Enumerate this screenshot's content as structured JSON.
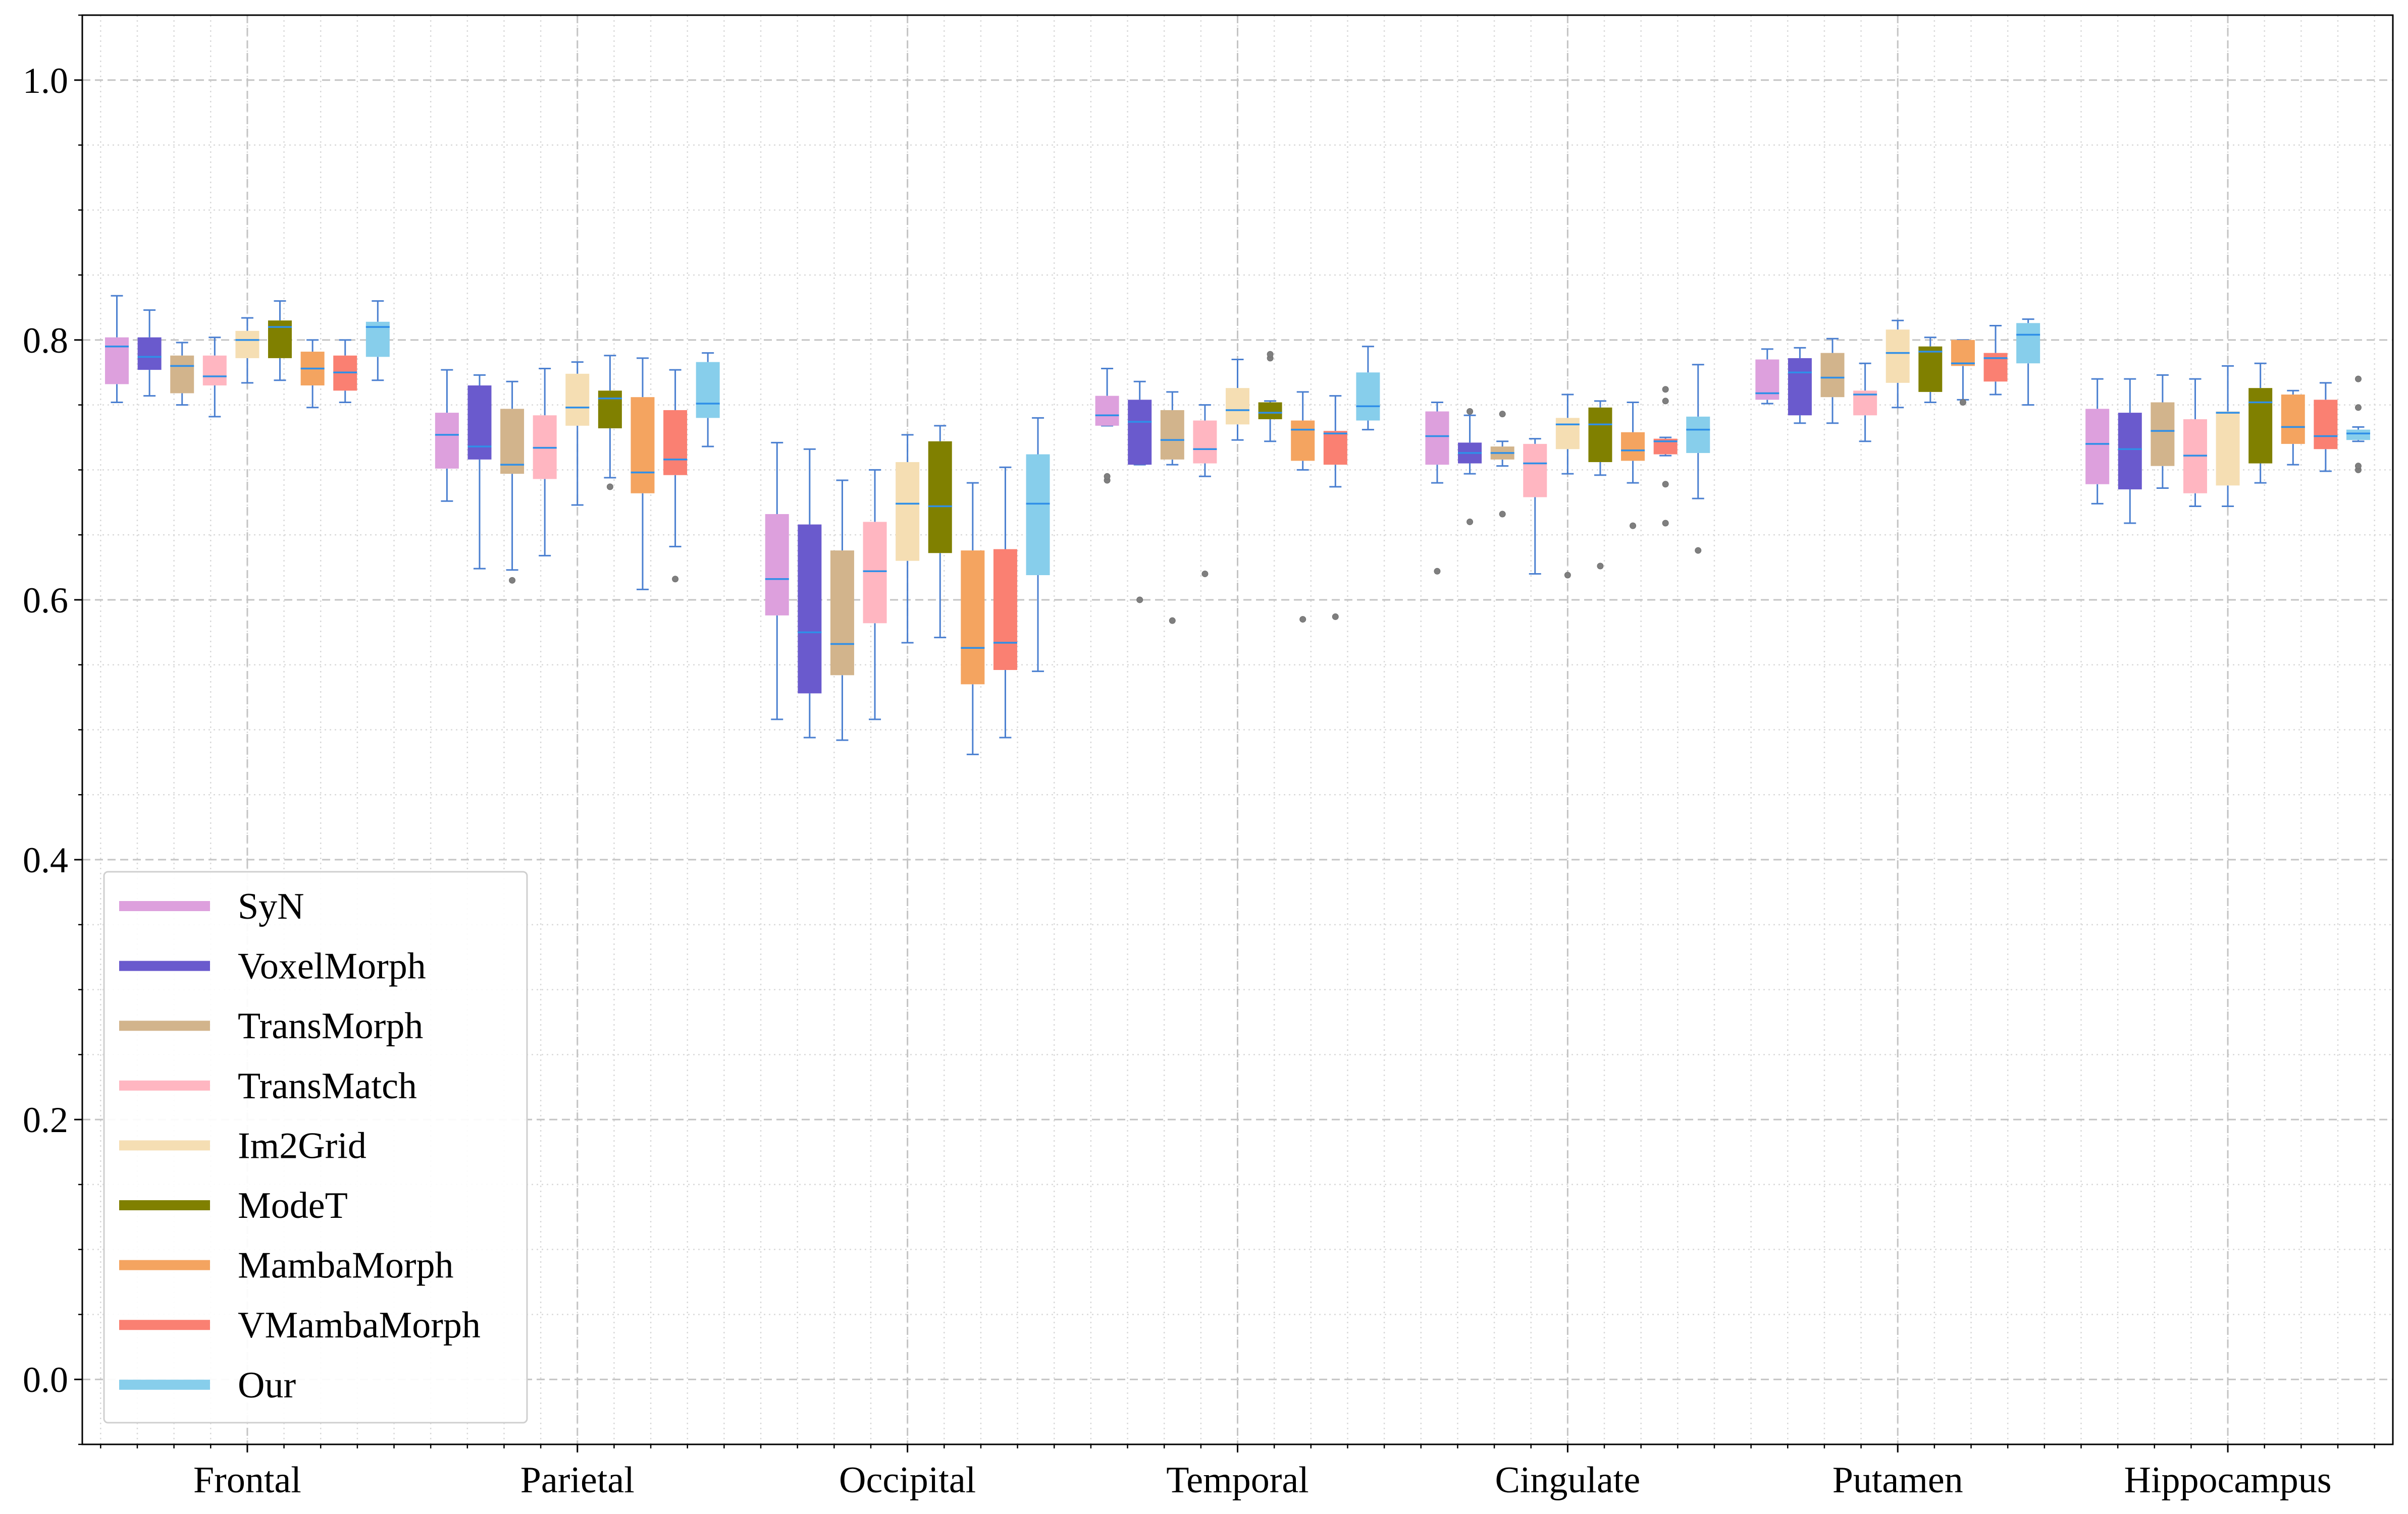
{
  "chart_data": {
    "type": "box",
    "title": "",
    "xlabel": "",
    "ylabel": "",
    "ylim": [
      -0.05,
      1.05
    ],
    "yticks": [
      "0.0",
      "0.2",
      "0.4",
      "0.6",
      "0.8",
      "1.0"
    ],
    "ytick_values": [
      0.0,
      0.2,
      0.4,
      0.6,
      0.8,
      1.0
    ],
    "grid": "major dashed, minor dotted",
    "legend_position": "lower-left",
    "categories": [
      "Frontal",
      "Parietal",
      "Occipital",
      "Temporal",
      "Cingulate",
      "Putamen",
      "Hippocampus"
    ],
    "series": [
      {
        "name": "SyN",
        "color": "#DDA0DD",
        "boxes": [
          {
            "whislo": 0.752,
            "q1": 0.766,
            "med": 0.795,
            "q3": 0.802,
            "whishi": 0.834,
            "fliers": []
          },
          {
            "whislo": 0.676,
            "q1": 0.701,
            "med": 0.727,
            "q3": 0.744,
            "whishi": 0.777,
            "fliers": []
          },
          {
            "whislo": 0.508,
            "q1": 0.588,
            "med": 0.616,
            "q3": 0.666,
            "whishi": 0.721,
            "fliers": []
          },
          {
            "whislo": 0.734,
            "q1": 0.734,
            "med": 0.742,
            "q3": 0.757,
            "whishi": 0.778,
            "fliers": [
              0.692,
              0.695
            ]
          },
          {
            "whislo": 0.69,
            "q1": 0.704,
            "med": 0.726,
            "q3": 0.745,
            "whishi": 0.752,
            "fliers": [
              0.622
            ]
          },
          {
            "whislo": 0.751,
            "q1": 0.754,
            "med": 0.759,
            "q3": 0.785,
            "whishi": 0.793,
            "fliers": []
          },
          {
            "whislo": 0.674,
            "q1": 0.689,
            "med": 0.72,
            "q3": 0.747,
            "whishi": 0.77,
            "fliers": []
          }
        ]
      },
      {
        "name": "VoxelMorph",
        "color": "#6A5ACD",
        "boxes": [
          {
            "whislo": 0.757,
            "q1": 0.777,
            "med": 0.787,
            "q3": 0.802,
            "whishi": 0.823,
            "fliers": []
          },
          {
            "whislo": 0.624,
            "q1": 0.708,
            "med": 0.718,
            "q3": 0.765,
            "whishi": 0.773,
            "fliers": []
          },
          {
            "whislo": 0.494,
            "q1": 0.528,
            "med": 0.575,
            "q3": 0.658,
            "whishi": 0.716,
            "fliers": []
          },
          {
            "whislo": 0.704,
            "q1": 0.704,
            "med": 0.737,
            "q3": 0.754,
            "whishi": 0.768,
            "fliers": [
              0.6
            ]
          },
          {
            "whislo": 0.697,
            "q1": 0.705,
            "med": 0.713,
            "q3": 0.721,
            "whishi": 0.742,
            "fliers": [
              0.66,
              0.745
            ]
          },
          {
            "whislo": 0.736,
            "q1": 0.742,
            "med": 0.775,
            "q3": 0.786,
            "whishi": 0.794,
            "fliers": []
          },
          {
            "whislo": 0.659,
            "q1": 0.685,
            "med": 0.716,
            "q3": 0.744,
            "whishi": 0.77,
            "fliers": []
          }
        ]
      },
      {
        "name": "TransMorph",
        "color": "#D2B48C",
        "boxes": [
          {
            "whislo": 0.75,
            "q1": 0.759,
            "med": 0.78,
            "q3": 0.788,
            "whishi": 0.798,
            "fliers": []
          },
          {
            "whislo": 0.623,
            "q1": 0.697,
            "med": 0.704,
            "q3": 0.747,
            "whishi": 0.768,
            "fliers": [
              0.615
            ]
          },
          {
            "whislo": 0.492,
            "q1": 0.542,
            "med": 0.566,
            "q3": 0.638,
            "whishi": 0.692,
            "fliers": []
          },
          {
            "whislo": 0.704,
            "q1": 0.708,
            "med": 0.723,
            "q3": 0.746,
            "whishi": 0.76,
            "fliers": [
              0.584
            ]
          },
          {
            "whislo": 0.703,
            "q1": 0.708,
            "med": 0.713,
            "q3": 0.718,
            "whishi": 0.722,
            "fliers": [
              0.666,
              0.743
            ]
          },
          {
            "whislo": 0.736,
            "q1": 0.756,
            "med": 0.771,
            "q3": 0.79,
            "whishi": 0.801,
            "fliers": []
          },
          {
            "whislo": 0.686,
            "q1": 0.703,
            "med": 0.73,
            "q3": 0.752,
            "whishi": 0.773,
            "fliers": []
          }
        ]
      },
      {
        "name": "TransMatch",
        "color": "#FFB6C1",
        "boxes": [
          {
            "whislo": 0.741,
            "q1": 0.765,
            "med": 0.772,
            "q3": 0.788,
            "whishi": 0.802,
            "fliers": []
          },
          {
            "whislo": 0.634,
            "q1": 0.693,
            "med": 0.717,
            "q3": 0.742,
            "whishi": 0.778,
            "fliers": []
          },
          {
            "whislo": 0.508,
            "q1": 0.582,
            "med": 0.622,
            "q3": 0.66,
            "whishi": 0.7,
            "fliers": []
          },
          {
            "whislo": 0.695,
            "q1": 0.705,
            "med": 0.716,
            "q3": 0.738,
            "whishi": 0.75,
            "fliers": [
              0.62
            ]
          },
          {
            "whislo": 0.62,
            "q1": 0.679,
            "med": 0.705,
            "q3": 0.72,
            "whishi": 0.724,
            "fliers": []
          },
          {
            "whislo": 0.722,
            "q1": 0.742,
            "med": 0.758,
            "q3": 0.761,
            "whishi": 0.782,
            "fliers": []
          },
          {
            "whislo": 0.672,
            "q1": 0.682,
            "med": 0.711,
            "q3": 0.739,
            "whishi": 0.77,
            "fliers": []
          }
        ]
      },
      {
        "name": "Im2Grid",
        "color": "#F5DEB3",
        "boxes": [
          {
            "whislo": 0.767,
            "q1": 0.786,
            "med": 0.8,
            "q3": 0.807,
            "whishi": 0.817,
            "fliers": []
          },
          {
            "whislo": 0.673,
            "q1": 0.734,
            "med": 0.748,
            "q3": 0.774,
            "whishi": 0.783,
            "fliers": []
          },
          {
            "whislo": 0.567,
            "q1": 0.63,
            "med": 0.674,
            "q3": 0.706,
            "whishi": 0.727,
            "fliers": []
          },
          {
            "whislo": 0.723,
            "q1": 0.735,
            "med": 0.746,
            "q3": 0.763,
            "whishi": 0.785,
            "fliers": []
          },
          {
            "whislo": 0.697,
            "q1": 0.716,
            "med": 0.735,
            "q3": 0.74,
            "whishi": 0.758,
            "fliers": [
              0.619
            ]
          },
          {
            "whislo": 0.748,
            "q1": 0.767,
            "med": 0.79,
            "q3": 0.808,
            "whishi": 0.815,
            "fliers": []
          },
          {
            "whislo": 0.672,
            "q1": 0.688,
            "med": 0.744,
            "q3": 0.745,
            "whishi": 0.78,
            "fliers": []
          }
        ]
      },
      {
        "name": "ModeT",
        "color": "#808000",
        "boxes": [
          {
            "whislo": 0.769,
            "q1": 0.786,
            "med": 0.81,
            "q3": 0.815,
            "whishi": 0.83,
            "fliers": []
          },
          {
            "whislo": 0.694,
            "q1": 0.732,
            "med": 0.755,
            "q3": 0.761,
            "whishi": 0.788,
            "fliers": [
              0.687
            ]
          },
          {
            "whislo": 0.571,
            "q1": 0.636,
            "med": 0.672,
            "q3": 0.722,
            "whishi": 0.734,
            "fliers": []
          },
          {
            "whislo": 0.722,
            "q1": 0.739,
            "med": 0.744,
            "q3": 0.752,
            "whishi": 0.753,
            "fliers": [
              0.786,
              0.789
            ]
          },
          {
            "whislo": 0.696,
            "q1": 0.706,
            "med": 0.735,
            "q3": 0.748,
            "whishi": 0.753,
            "fliers": [
              0.626
            ]
          },
          {
            "whislo": 0.752,
            "q1": 0.76,
            "med": 0.791,
            "q3": 0.795,
            "whishi": 0.802,
            "fliers": []
          },
          {
            "whislo": 0.69,
            "q1": 0.705,
            "med": 0.752,
            "q3": 0.763,
            "whishi": 0.782,
            "fliers": []
          }
        ]
      },
      {
        "name": "MambaMorph",
        "color": "#F4A460",
        "boxes": [
          {
            "whislo": 0.748,
            "q1": 0.765,
            "med": 0.778,
            "q3": 0.791,
            "whishi": 0.8,
            "fliers": []
          },
          {
            "whislo": 0.608,
            "q1": 0.682,
            "med": 0.698,
            "q3": 0.756,
            "whishi": 0.786,
            "fliers": []
          },
          {
            "whislo": 0.481,
            "q1": 0.535,
            "med": 0.563,
            "q3": 0.638,
            "whishi": 0.69,
            "fliers": []
          },
          {
            "whislo": 0.7,
            "q1": 0.707,
            "med": 0.731,
            "q3": 0.738,
            "whishi": 0.76,
            "fliers": [
              0.585
            ]
          },
          {
            "whislo": 0.69,
            "q1": 0.707,
            "med": 0.715,
            "q3": 0.729,
            "whishi": 0.752,
            "fliers": [
              0.657
            ]
          },
          {
            "whislo": 0.754,
            "q1": 0.78,
            "med": 0.782,
            "q3": 0.8,
            "whishi": 0.8,
            "fliers": [
              0.752
            ]
          },
          {
            "whislo": 0.704,
            "q1": 0.72,
            "med": 0.733,
            "q3": 0.758,
            "whishi": 0.761,
            "fliers": []
          }
        ]
      },
      {
        "name": "VMambaMorph",
        "color": "#FA8072",
        "boxes": [
          {
            "whislo": 0.752,
            "q1": 0.761,
            "med": 0.775,
            "q3": 0.788,
            "whishi": 0.8,
            "fliers": []
          },
          {
            "whislo": 0.641,
            "q1": 0.696,
            "med": 0.708,
            "q3": 0.746,
            "whishi": 0.777,
            "fliers": [
              0.616
            ]
          },
          {
            "whislo": 0.494,
            "q1": 0.546,
            "med": 0.567,
            "q3": 0.639,
            "whishi": 0.702,
            "fliers": []
          },
          {
            "whislo": 0.687,
            "q1": 0.704,
            "med": 0.728,
            "q3": 0.73,
            "whishi": 0.757,
            "fliers": [
              0.587
            ]
          },
          {
            "whislo": 0.711,
            "q1": 0.712,
            "med": 0.722,
            "q3": 0.724,
            "whishi": 0.725,
            "fliers": [
              0.659,
              0.689,
              0.753,
              0.762
            ]
          },
          {
            "whislo": 0.758,
            "q1": 0.768,
            "med": 0.786,
            "q3": 0.79,
            "whishi": 0.811,
            "fliers": []
          },
          {
            "whislo": 0.699,
            "q1": 0.716,
            "med": 0.726,
            "q3": 0.754,
            "whishi": 0.767,
            "fliers": []
          }
        ]
      },
      {
        "name": "Our",
        "color": "#87CEEB",
        "boxes": [
          {
            "whislo": 0.769,
            "q1": 0.787,
            "med": 0.81,
            "q3": 0.814,
            "whishi": 0.83,
            "fliers": []
          },
          {
            "whislo": 0.718,
            "q1": 0.74,
            "med": 0.751,
            "q3": 0.783,
            "whishi": 0.79,
            "fliers": []
          },
          {
            "whislo": 0.545,
            "q1": 0.619,
            "med": 0.674,
            "q3": 0.712,
            "whishi": 0.74,
            "fliers": []
          },
          {
            "whislo": 0.731,
            "q1": 0.738,
            "med": 0.749,
            "q3": 0.775,
            "whishi": 0.795,
            "fliers": []
          },
          {
            "whislo": 0.678,
            "q1": 0.713,
            "med": 0.731,
            "q3": 0.741,
            "whishi": 0.781,
            "fliers": [
              0.638
            ]
          },
          {
            "whislo": 0.75,
            "q1": 0.782,
            "med": 0.804,
            "q3": 0.813,
            "whishi": 0.816,
            "fliers": []
          },
          {
            "whislo": 0.722,
            "q1": 0.723,
            "med": 0.728,
            "q3": 0.731,
            "whishi": 0.733,
            "fliers": [
              0.7,
              0.703,
              0.748,
              0.77
            ]
          }
        ]
      }
    ]
  }
}
